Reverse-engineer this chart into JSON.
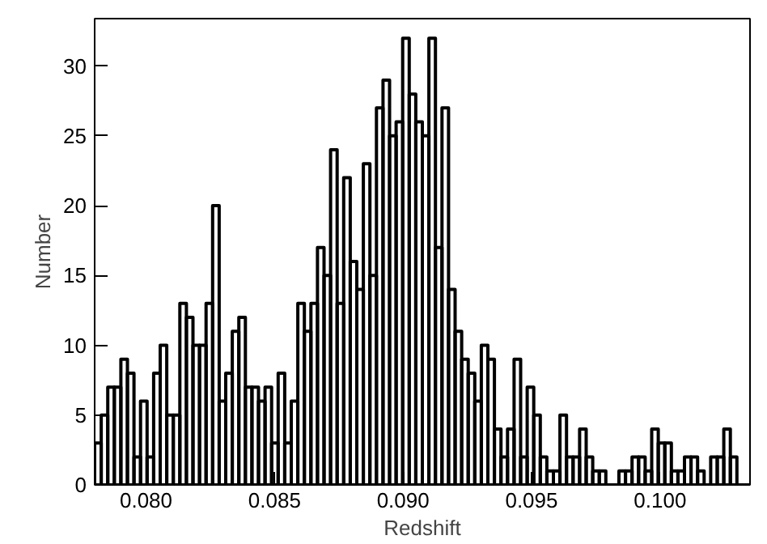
{
  "chart_data": {
    "type": "histogram",
    "xlabel": "Redshift",
    "ylabel": "Number",
    "color": "#000000",
    "bins": [
      0.078,
      0.078255,
      0.07851,
      0.078765,
      0.07902,
      0.079275,
      0.07953,
      0.079785,
      0.08004,
      0.080295,
      0.08055,
      0.080805,
      0.08106,
      0.081315,
      0.08157,
      0.081825,
      0.08208,
      0.082335,
      0.08259,
      0.082845,
      0.0831,
      0.083355,
      0.08361,
      0.083865,
      0.08412,
      0.084375,
      0.08463,
      0.084885,
      0.08514,
      0.085395,
      0.08565,
      0.085905,
      0.08616,
      0.086415,
      0.08667,
      0.086925,
      0.08718,
      0.087435,
      0.08769,
      0.087945,
      0.0882,
      0.088455,
      0.08871,
      0.088965,
      0.08922,
      0.089475,
      0.08973,
      0.089985,
      0.09024,
      0.090495,
      0.09075,
      0.091005,
      0.09126,
      0.091515,
      0.09177,
      0.092025,
      0.09228,
      0.092535,
      0.09279,
      0.093045,
      0.0933,
      0.093555,
      0.09381,
      0.094065,
      0.09432,
      0.094575,
      0.09483,
      0.095085,
      0.09534,
      0.095595,
      0.09585,
      0.096105,
      0.09636,
      0.096615,
      0.09687,
      0.097125,
      0.09738,
      0.097635,
      0.09789,
      0.098145,
      0.0984,
      0.098655,
      0.09891,
      0.099165,
      0.09942,
      0.099675,
      0.09993,
      0.100185,
      0.10044,
      0.100695,
      0.10095,
      0.101205,
      0.10146,
      0.101715,
      0.10197,
      0.102225,
      0.10248,
      0.102735,
      0.10299,
      0.103245,
      0.1035
    ],
    "values": [
      3,
      5,
      7,
      7,
      9,
      8,
      2,
      6,
      2,
      8,
      10,
      5,
      5,
      13,
      12,
      10,
      10,
      13,
      20,
      6,
      8,
      11,
      12,
      7,
      7,
      6,
      7,
      3,
      8,
      3,
      6,
      13,
      11,
      13,
      17,
      15,
      24,
      13,
      22,
      16,
      14,
      23,
      15,
      27,
      29,
      25,
      26,
      32,
      28,
      26,
      25,
      32,
      17,
      27,
      14,
      11,
      9,
      8,
      6,
      10,
      9,
      4,
      2,
      4,
      9,
      2,
      7,
      5,
      2,
      1,
      1,
      5,
      2,
      2,
      4,
      2,
      1,
      1,
      0,
      0,
      1,
      1,
      2,
      2,
      1,
      4,
      3,
      3,
      1,
      1,
      2,
      2,
      1,
      0,
      2,
      2,
      4,
      2,
      0,
      0
    ],
    "xlim": [
      0.078,
      0.1035
    ],
    "xticks": [
      {
        "value": 0.08,
        "label": "0.080"
      },
      {
        "value": 0.085,
        "label": "0.085"
      },
      {
        "value": 0.09,
        "label": "0.090"
      },
      {
        "value": 0.095,
        "label": "0.095"
      },
      {
        "value": 0.1,
        "label": "0.100"
      }
    ],
    "ylim": [
      0,
      33.4
    ],
    "yticks": [
      0,
      5,
      10,
      15,
      20,
      25,
      30
    ],
    "grid": false
  }
}
